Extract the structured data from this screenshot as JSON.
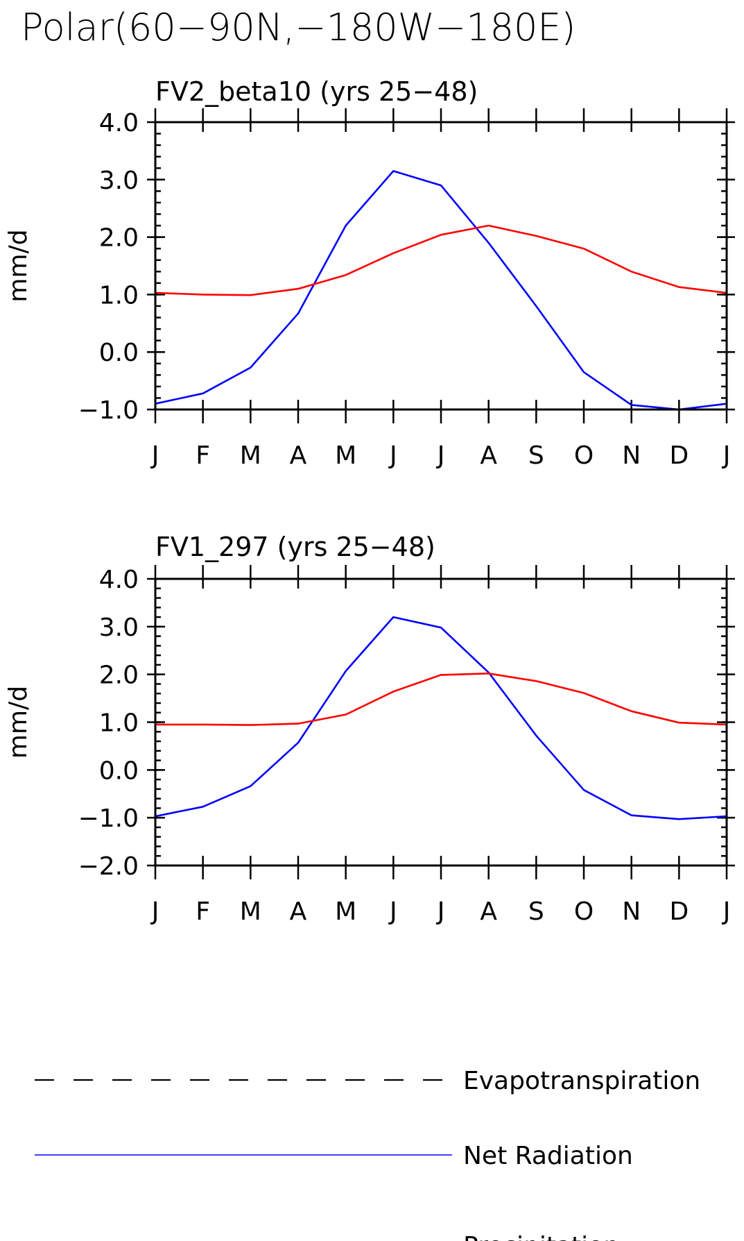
{
  "title": "Polar(60−90N,−180W−180E)",
  "legend": [
    {
      "name": "Evapotranspiration",
      "color": "#000000",
      "dash": true
    },
    {
      "name": "Net Radiation",
      "color": "#0000ff",
      "dash": false
    },
    {
      "name": "Precipitation",
      "color": "#ff0000",
      "dash": false
    }
  ],
  "chart_data": [
    {
      "type": "line",
      "title": "FV2_beta10 (yrs 25−48)",
      "ylabel": "mm/d",
      "xlabel": "",
      "categories": [
        "J",
        "F",
        "M",
        "A",
        "M",
        "J",
        "J",
        "A",
        "S",
        "O",
        "N",
        "D",
        "J"
      ],
      "ylim": [
        -1.0,
        4.0
      ],
      "yticks": [
        -1.0,
        0.0,
        1.0,
        2.0,
        3.0,
        4.0
      ],
      "ytick_labels": [
        "−1.0",
        "0.0",
        "1.0",
        "2.0",
        "3.0",
        "4.0"
      ],
      "series": [
        {
          "name": "Net Radiation",
          "color": "#0000ff",
          "values": [
            -0.9,
            -0.72,
            -0.27,
            0.67,
            2.2,
            3.15,
            2.9,
            1.9,
            0.8,
            -0.35,
            -0.92,
            -1.0,
            -0.9
          ]
        },
        {
          "name": "Precipitation",
          "color": "#ff0000",
          "values": [
            1.03,
            1.0,
            0.99,
            1.1,
            1.34,
            1.72,
            2.04,
            2.2,
            2.02,
            1.8,
            1.4,
            1.13,
            1.03
          ]
        }
      ]
    },
    {
      "type": "line",
      "title": "FV1_297 (yrs 25−48)",
      "ylabel": "mm/d",
      "xlabel": "",
      "categories": [
        "J",
        "F",
        "M",
        "A",
        "M",
        "J",
        "J",
        "A",
        "S",
        "O",
        "N",
        "D",
        "J"
      ],
      "ylim": [
        -2.0,
        4.0
      ],
      "yticks": [
        -2.0,
        -1.0,
        0.0,
        1.0,
        2.0,
        3.0,
        4.0
      ],
      "ytick_labels": [
        "−2.0",
        "−1.0",
        "0.0",
        "1.0",
        "2.0",
        "3.0",
        "4.0"
      ],
      "series": [
        {
          "name": "Net Radiation",
          "color": "#0000ff",
          "values": [
            -0.97,
            -0.77,
            -0.34,
            0.57,
            2.07,
            3.2,
            2.98,
            2.04,
            0.72,
            -0.42,
            -0.95,
            -1.03,
            -0.97
          ]
        },
        {
          "name": "Precipitation",
          "color": "#ff0000",
          "values": [
            0.95,
            0.95,
            0.94,
            0.97,
            1.16,
            1.64,
            1.99,
            2.02,
            1.86,
            1.61,
            1.23,
            0.99,
            0.95
          ]
        }
      ]
    }
  ]
}
